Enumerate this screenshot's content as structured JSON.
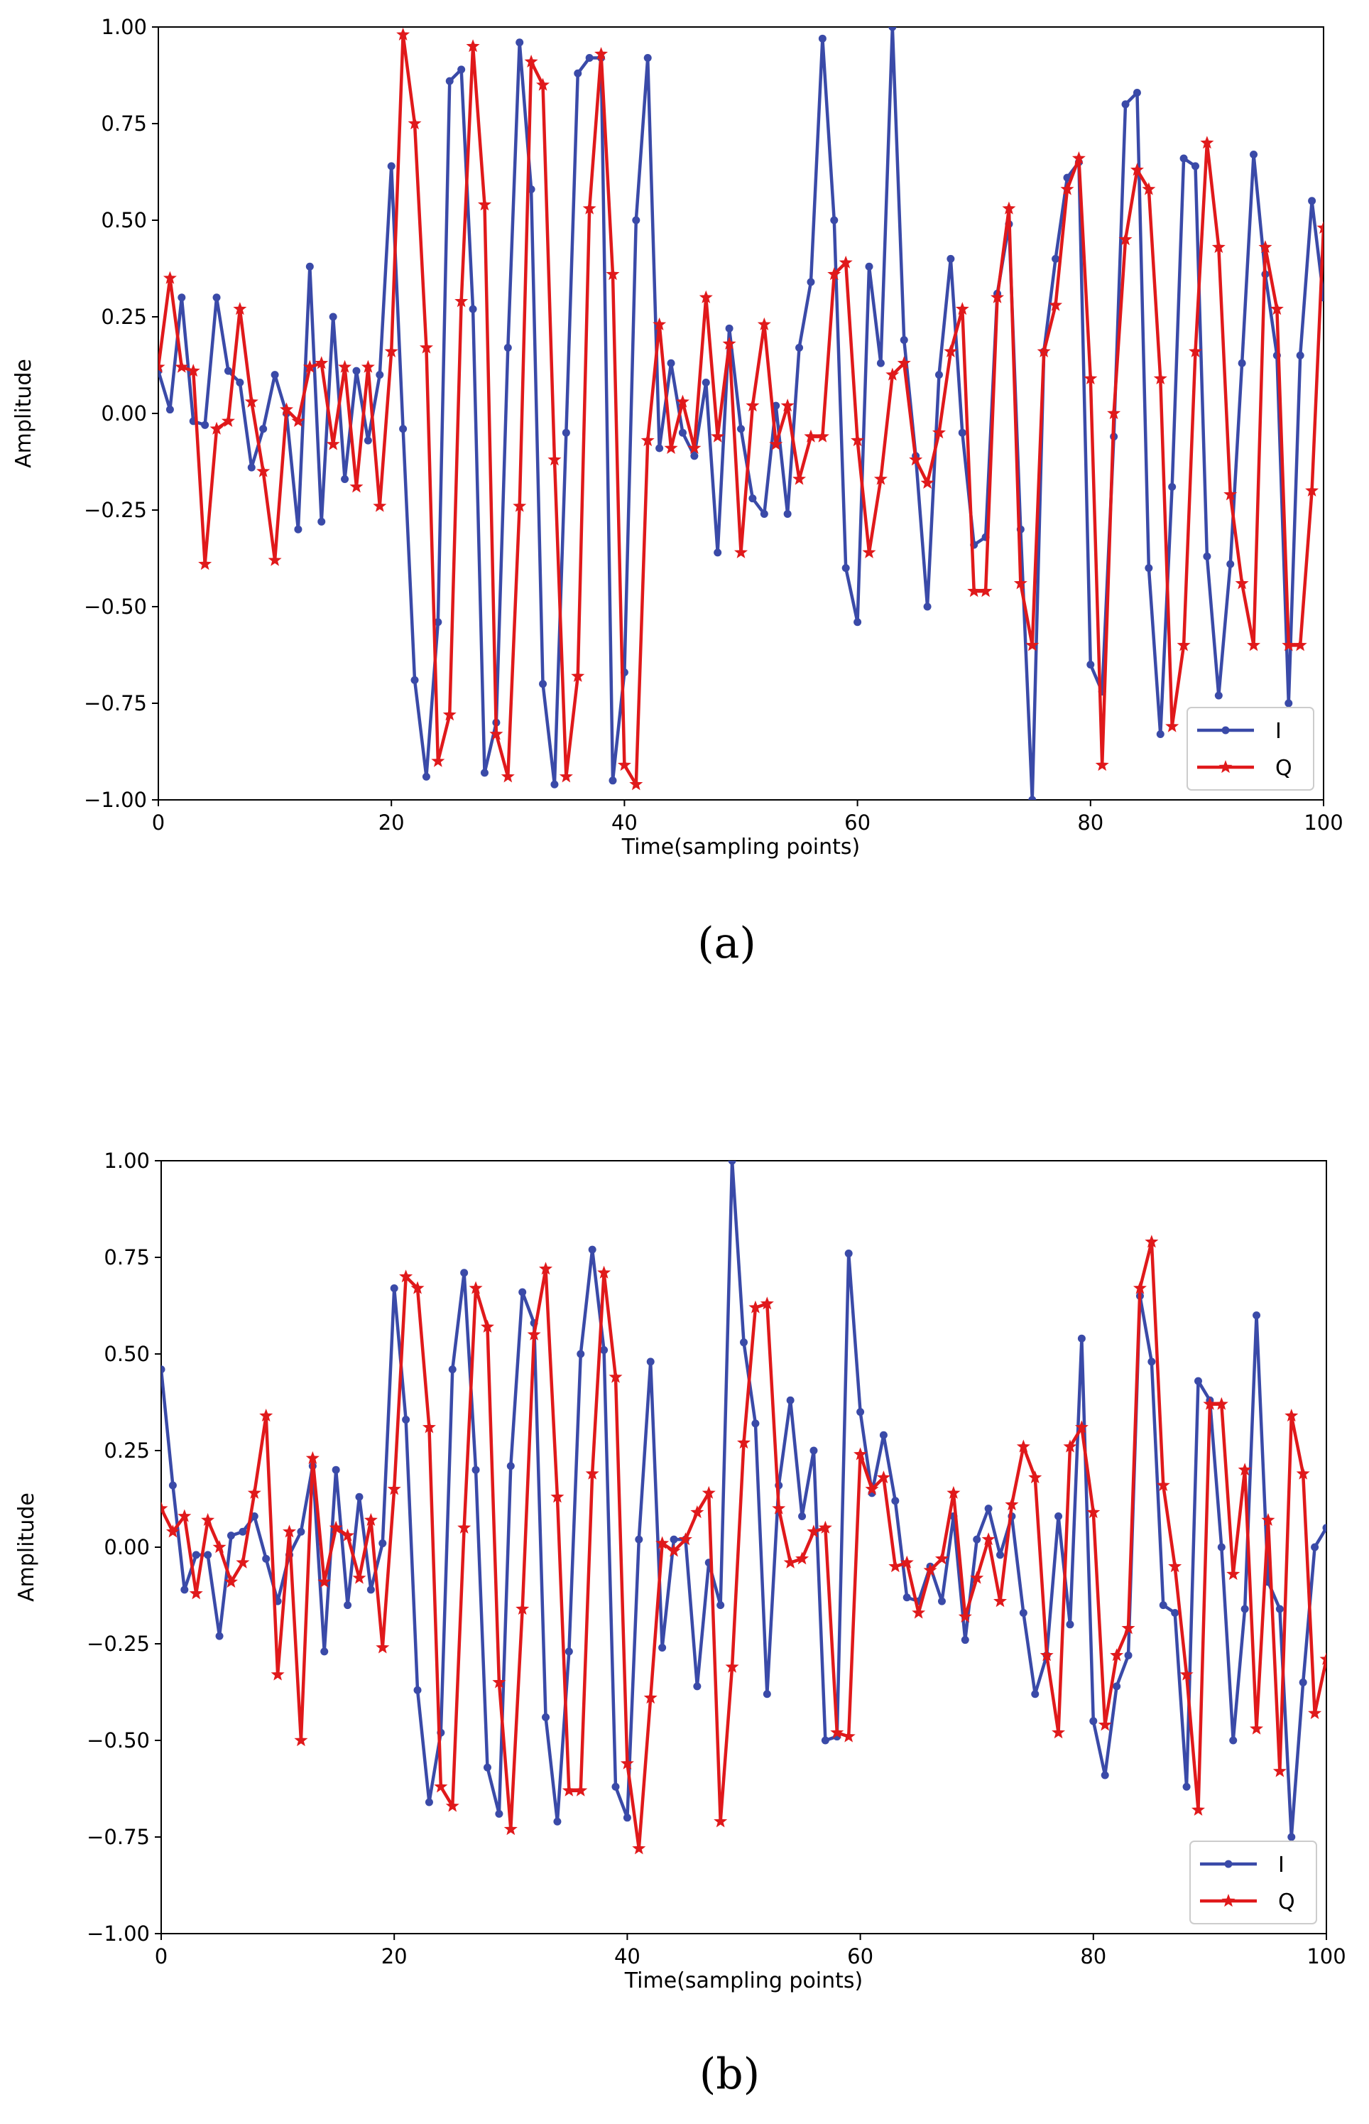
{
  "chart_data": [
    {
      "type": "line",
      "caption": "(a)",
      "xlabel": "Time(sampling points)",
      "ylabel": "Amplitude",
      "xlim": [
        0,
        100
      ],
      "ylim": [
        -1.0,
        1.0
      ],
      "xticks": [
        0,
        20,
        40,
        60,
        80,
        100
      ],
      "yticks": [
        -1.0,
        -0.75,
        -0.5,
        -0.25,
        0.0,
        0.25,
        0.5,
        0.75,
        1.0
      ],
      "ytick_labels": [
        "−1.00",
        "−0.75",
        "−0.50",
        "−0.25",
        "0.00",
        "0.25",
        "0.50",
        "0.75",
        "1.00"
      ],
      "legend_position": "lower-right",
      "x": [
        0,
        1,
        2,
        3,
        4,
        5,
        6,
        7,
        8,
        9,
        10,
        11,
        12,
        13,
        14,
        15,
        16,
        17,
        18,
        19,
        20,
        21,
        22,
        23,
        24,
        25,
        26,
        27,
        28,
        29,
        30,
        31,
        32,
        33,
        34,
        35,
        36,
        37,
        38,
        39,
        40,
        41,
        42,
        43,
        44,
        45,
        46,
        47,
        48,
        49,
        50,
        51,
        52,
        53,
        54,
        55,
        56,
        57,
        58,
        59,
        60,
        61,
        62,
        63,
        64,
        65,
        66,
        67,
        68,
        69,
        70,
        71,
        72,
        73,
        74,
        75,
        76,
        77,
        78,
        79,
        80,
        81,
        82,
        83,
        84,
        85,
        86,
        87,
        88,
        89,
        90,
        91,
        92,
        93,
        94,
        95,
        96,
        97,
        98,
        99,
        100
      ],
      "series": [
        {
          "name": "I",
          "color": "#3a4aa8",
          "marker": "dot",
          "values": [
            0.11,
            0.01,
            0.3,
            -0.02,
            -0.03,
            0.3,
            0.11,
            0.08,
            -0.14,
            -0.04,
            0.1,
            0.0,
            -0.3,
            0.38,
            -0.28,
            0.25,
            -0.17,
            0.11,
            -0.07,
            0.1,
            0.64,
            -0.04,
            -0.69,
            -0.94,
            -0.54,
            0.86,
            0.89,
            0.27,
            -0.93,
            -0.8,
            0.17,
            0.96,
            0.58,
            -0.7,
            -0.96,
            -0.05,
            0.88,
            0.92,
            0.92,
            -0.95,
            -0.67,
            0.5,
            0.92,
            -0.09,
            0.13,
            -0.05,
            -0.11,
            0.08,
            -0.36,
            0.22,
            -0.04,
            -0.22,
            -0.26,
            0.02,
            -0.26,
            0.17,
            0.34,
            0.97,
            0.5,
            -0.4,
            -0.54,
            0.38,
            0.13,
            1.0,
            0.19,
            -0.11,
            -0.5,
            0.1,
            0.4,
            -0.05,
            -0.34,
            -0.32,
            0.31,
            0.49,
            -0.3,
            -1.0,
            0.16,
            0.4,
            0.61,
            0.65,
            -0.65,
            -0.72,
            -0.06,
            0.8,
            0.83,
            -0.4,
            -0.83,
            -0.19,
            0.66,
            0.64,
            -0.37,
            -0.73,
            -0.39,
            0.13,
            0.67,
            0.36,
            0.15,
            -0.75,
            0.15,
            0.55,
            0.3
          ]
        },
        {
          "name": "Q",
          "color": "#e0191b",
          "marker": "star",
          "values": [
            0.12,
            0.35,
            0.12,
            0.11,
            -0.39,
            -0.04,
            -0.02,
            0.27,
            0.03,
            -0.15,
            -0.38,
            0.01,
            -0.02,
            0.12,
            0.13,
            -0.08,
            0.12,
            -0.19,
            0.12,
            -0.24,
            0.16,
            0.98,
            0.75,
            0.17,
            -0.9,
            -0.78,
            0.29,
            0.95,
            0.54,
            -0.83,
            -0.94,
            -0.24,
            0.91,
            0.85,
            -0.12,
            -0.94,
            -0.68,
            0.53,
            0.93,
            0.36,
            -0.91,
            -0.96,
            -0.07,
            0.23,
            -0.09,
            0.03,
            -0.09,
            0.3,
            -0.06,
            0.18,
            -0.36,
            0.02,
            0.23,
            -0.08,
            0.02,
            -0.17,
            -0.06,
            -0.06,
            0.36,
            0.39,
            -0.07,
            -0.36,
            -0.17,
            0.1,
            0.13,
            -0.12,
            -0.18,
            -0.05,
            0.16,
            0.27,
            -0.46,
            -0.46,
            0.3,
            0.53,
            -0.44,
            -0.6,
            0.16,
            0.28,
            0.58,
            0.66,
            0.09,
            -0.91,
            0.0,
            0.45,
            0.63,
            0.58,
            0.09,
            -0.81,
            -0.6,
            0.16,
            0.7,
            0.43,
            -0.21,
            -0.44,
            -0.6,
            0.43,
            0.27,
            -0.6,
            -0.6,
            -0.2,
            0.48
          ]
        }
      ]
    },
    {
      "type": "line",
      "caption": "(b)",
      "xlabel": "Time(sampling points)",
      "ylabel": "Amplitude",
      "xlim": [
        0,
        100
      ],
      "ylim": [
        -1.0,
        1.0
      ],
      "xticks": [
        0,
        20,
        40,
        60,
        80,
        100
      ],
      "yticks": [
        -1.0,
        -0.75,
        -0.5,
        -0.25,
        0.0,
        0.25,
        0.5,
        0.75,
        1.0
      ],
      "ytick_labels": [
        "−1.00",
        "−0.75",
        "−0.50",
        "−0.25",
        "0.00",
        "0.25",
        "0.50",
        "0.75",
        "1.00"
      ],
      "legend_position": "lower-right",
      "x": [
        0,
        1,
        2,
        3,
        4,
        5,
        6,
        7,
        8,
        9,
        10,
        11,
        12,
        13,
        14,
        15,
        16,
        17,
        18,
        19,
        20,
        21,
        22,
        23,
        24,
        25,
        26,
        27,
        28,
        29,
        30,
        31,
        32,
        33,
        34,
        35,
        36,
        37,
        38,
        39,
        40,
        41,
        42,
        43,
        44,
        45,
        46,
        47,
        48,
        49,
        50,
        51,
        52,
        53,
        54,
        55,
        56,
        57,
        58,
        59,
        60,
        61,
        62,
        63,
        64,
        65,
        66,
        67,
        68,
        69,
        70,
        71,
        72,
        73,
        74,
        75,
        76,
        77,
        78,
        79,
        80,
        81,
        82,
        83,
        84,
        85,
        86,
        87,
        88,
        89,
        90,
        91,
        92,
        93,
        94,
        95,
        96,
        97,
        98,
        99,
        100
      ],
      "series": [
        {
          "name": "I",
          "color": "#3a4aa8",
          "marker": "dot",
          "values": [
            0.46,
            0.16,
            -0.11,
            -0.02,
            -0.02,
            -0.23,
            0.03,
            0.04,
            0.08,
            -0.03,
            -0.14,
            -0.02,
            0.04,
            0.21,
            -0.27,
            0.2,
            -0.15,
            0.13,
            -0.11,
            0.01,
            0.67,
            0.33,
            -0.37,
            -0.66,
            -0.48,
            0.46,
            0.71,
            0.2,
            -0.57,
            -0.69,
            0.21,
            0.66,
            0.58,
            -0.44,
            -0.71,
            -0.27,
            0.5,
            0.77,
            0.51,
            -0.62,
            -0.7,
            0.02,
            0.48,
            -0.26,
            0.02,
            0.02,
            -0.36,
            -0.04,
            -0.15,
            1.0,
            0.53,
            0.32,
            -0.38,
            0.16,
            0.38,
            0.08,
            0.25,
            -0.5,
            -0.49,
            0.76,
            0.35,
            0.14,
            0.29,
            0.12,
            -0.13,
            -0.14,
            -0.05,
            -0.14,
            0.08,
            -0.24,
            0.02,
            0.1,
            -0.02,
            0.08,
            -0.17,
            -0.38,
            -0.28,
            0.08,
            -0.2,
            0.54,
            -0.45,
            -0.59,
            -0.36,
            -0.28,
            0.65,
            0.48,
            -0.15,
            -0.17,
            -0.62,
            0.43,
            0.38,
            0.0,
            -0.5,
            -0.16,
            0.6,
            -0.09,
            -0.16,
            -0.75,
            -0.35,
            0.0,
            0.05
          ]
        },
        {
          "name": "Q",
          "color": "#e0191b",
          "marker": "star",
          "values": [
            0.1,
            0.04,
            0.08,
            -0.12,
            0.07,
            0.0,
            -0.09,
            -0.04,
            0.14,
            0.34,
            -0.33,
            0.04,
            -0.5,
            0.23,
            -0.09,
            0.05,
            0.03,
            -0.08,
            0.07,
            -0.26,
            0.15,
            0.7,
            0.67,
            0.31,
            -0.62,
            -0.67,
            0.05,
            0.67,
            0.57,
            -0.35,
            -0.73,
            -0.16,
            0.55,
            0.72,
            0.13,
            -0.63,
            -0.63,
            0.19,
            0.71,
            0.44,
            -0.56,
            -0.78,
            -0.39,
            0.01,
            -0.01,
            0.02,
            0.09,
            0.14,
            -0.71,
            -0.31,
            0.27,
            0.62,
            0.63,
            0.1,
            -0.04,
            -0.03,
            0.04,
            0.05,
            -0.48,
            -0.49,
            0.24,
            0.15,
            0.18,
            -0.05,
            -0.04,
            -0.17,
            -0.06,
            -0.03,
            0.14,
            -0.18,
            -0.08,
            0.02,
            -0.14,
            0.11,
            0.26,
            0.18,
            -0.28,
            -0.48,
            0.26,
            0.31,
            0.09,
            -0.46,
            -0.28,
            -0.21,
            0.67,
            0.79,
            0.16,
            -0.05,
            -0.33,
            -0.68,
            0.37,
            0.37,
            -0.07,
            0.2,
            -0.47,
            0.07,
            -0.58,
            0.34,
            0.19,
            -0.43,
            -0.29
          ]
        }
      ]
    }
  ]
}
